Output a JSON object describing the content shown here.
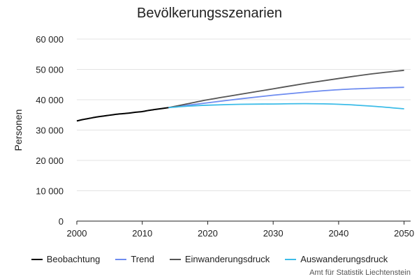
{
  "chart_data": {
    "type": "line",
    "title": "Bevölkerungsszenarien",
    "xlabel": "",
    "ylabel": "Personen",
    "xlim": [
      2000,
      2051
    ],
    "ylim": [
      0,
      60000
    ],
    "xticks": [
      "2000",
      "2010",
      "2020",
      "2030",
      "2040",
      "2050"
    ],
    "yticks": [
      "0",
      "10 000",
      "20 000",
      "30 000",
      "40 000",
      "50 000",
      "60 000"
    ],
    "grid": true,
    "legend_position": "bottom",
    "series": [
      {
        "name": "Beobachtung",
        "color": "#000000",
        "x": [
          2000,
          2001,
          2002,
          2003,
          2004,
          2005,
          2006,
          2007,
          2008,
          2009,
          2010,
          2011,
          2012,
          2013,
          2014
        ],
        "values": [
          33000,
          33500,
          33900,
          34300,
          34600,
          34900,
          35200,
          35400,
          35600,
          35900,
          36100,
          36500,
          36800,
          37100,
          37400
        ]
      },
      {
        "name": "Trend",
        "color": "#6e8cf0",
        "x": [
          2014,
          2017,
          2020,
          2025,
          2030,
          2035,
          2040,
          2045,
          2050
        ],
        "values": [
          37400,
          38200,
          39000,
          40300,
          41500,
          42500,
          43300,
          43800,
          44100
        ]
      },
      {
        "name": "Einwanderungsdruck",
        "color": "#555555",
        "x": [
          2014,
          2017,
          2020,
          2025,
          2030,
          2035,
          2040,
          2045,
          2050
        ],
        "values": [
          37400,
          38700,
          40000,
          41800,
          43600,
          45400,
          47000,
          48500,
          49700
        ]
      },
      {
        "name": "Auswanderungsdruck",
        "color": "#3cbce8",
        "x": [
          2014,
          2017,
          2020,
          2025,
          2030,
          2035,
          2040,
          2045,
          2050
        ],
        "values": [
          37400,
          37900,
          38200,
          38500,
          38600,
          38700,
          38500,
          37900,
          37000
        ]
      }
    ]
  },
  "source": "Amt für Statistik Liechtenstein"
}
